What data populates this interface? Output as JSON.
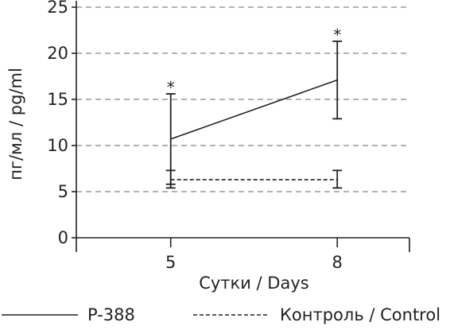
{
  "chart_data": {
    "type": "line",
    "title": "",
    "xlabel": "Сутки / Days",
    "ylabel": "пг/мл / pg/ml",
    "x": [
      5,
      8
    ],
    "x_tick_labels": [
      "5",
      "8"
    ],
    "xlim": [
      3.3,
      9.3
    ],
    "ylim": [
      0,
      25
    ],
    "y_ticks": [
      0,
      5,
      10,
      15,
      20,
      25
    ],
    "y_tick_labels": [
      "0",
      "5",
      "10",
      "15",
      "20",
      "25"
    ],
    "grid": "horizontal dashed",
    "legend_position": "bottom",
    "series": [
      {
        "name": "P-388",
        "line_style": "solid",
        "values": [
          10.7,
          17.1
        ],
        "error_upper": [
          15.6,
          21.3
        ],
        "error_lower": [
          5.8,
          12.9
        ],
        "markers": [
          "*",
          "*"
        ]
      },
      {
        "name": "Контроль / Control",
        "line_style": "dashed",
        "values": [
          6.3,
          6.3
        ],
        "error_upper": [
          7.3,
          7.3
        ],
        "error_lower": [
          5.4,
          5.4
        ],
        "markers": [
          "",
          ""
        ]
      }
    ]
  }
}
